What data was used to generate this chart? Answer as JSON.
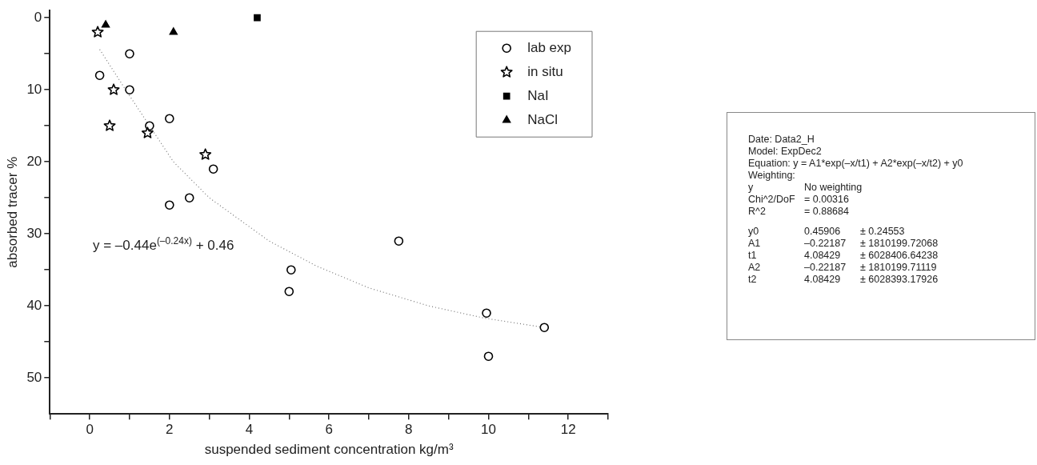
{
  "chart_data": {
    "type": "scatter",
    "xlabel": "suspended sediment concentration kg/m³",
    "ylabel": "absorbed tracer %",
    "xlim": [
      -1,
      13
    ],
    "xticks": [
      {
        "value": -1,
        "label": null
      },
      0,
      {
        "value": 1,
        "label": null
      },
      2,
      {
        "value": 3,
        "label": null
      },
      4,
      {
        "value": 5,
        "label": null
      },
      6,
      {
        "value": 7,
        "label": null
      },
      8,
      {
        "value": 9,
        "label": null
      },
      10,
      {
        "value": 11,
        "label": null
      },
      12,
      {
        "value": 13,
        "label": null
      }
    ],
    "ylim": [
      55,
      -1
    ],
    "yticks": [
      0,
      {
        "value": 5,
        "label": null
      },
      10,
      {
        "value": 15,
        "label": null
      },
      20,
      {
        "value": 25,
        "label": null
      },
      30,
      {
        "value": 35,
        "label": null
      },
      40,
      {
        "value": 45,
        "label": null
      },
      50
    ],
    "grid": false,
    "legend": "top right",
    "series": [
      {
        "name": "lab exp",
        "color": "#000000",
        "marker": "circle",
        "x": [
          0.25,
          1,
          1,
          1.5,
          2,
          3.1,
          2.5,
          2,
          5.05,
          5,
          7.75,
          9.95,
          10,
          11.4
        ],
        "values": [
          8,
          5,
          10,
          15,
          14,
          21,
          25,
          26,
          35,
          38,
          31,
          41,
          47,
          43
        ]
      },
      {
        "name": "in situ",
        "color": "#000000",
        "marker": "star",
        "x": [
          0.2,
          0.6,
          0.5,
          1.45,
          2.9
        ],
        "values": [
          2,
          10,
          15,
          16,
          19
        ]
      },
      {
        "name": "NaI",
        "color": "#000000",
        "marker": "square",
        "x": [
          4.2
        ],
        "values": [
          0
        ]
      },
      {
        "name": "NaCl",
        "color": "#000000",
        "marker": "triangle",
        "x": [
          0.4,
          2.1
        ],
        "values": [
          1,
          2
        ]
      },
      {
        "type": "line",
        "color": "#777777",
        "marker": "none",
        "line_style": "dotted",
        "x": [
          0.25,
          0.9,
          1.5,
          2.1,
          3,
          4.5,
          5.7,
          7,
          8.5,
          9.9,
          11.4
        ],
        "values": [
          4.4,
          10,
          15,
          20,
          25,
          31,
          34.5,
          37.5,
          40,
          41.7,
          43
        ]
      }
    ],
    "annotations": [
      "y = –0.44e$^{(–0.24x)}$ + 0.46",
      "Date: Data2_H",
      "Model: ExpDec2",
      "Equation: y = A1*exp(–x/t1) + A2*exp(–x/t2) + y0",
      "Weighting:",
      "y\tNo weighting",
      "Chi^2/DoF\t= 0.00316",
      "R^2\t= 0.88684",
      "y0\t0.45906\t± 0.24553",
      "A1\t–0.22187\t± 1810199.72068",
      "t1\t4.08429\t± 6028406.64238",
      "A2\t–0.22187\t± 1810199.71119",
      "t2\t4.08429\t± 6028393.17926"
    ]
  }
}
